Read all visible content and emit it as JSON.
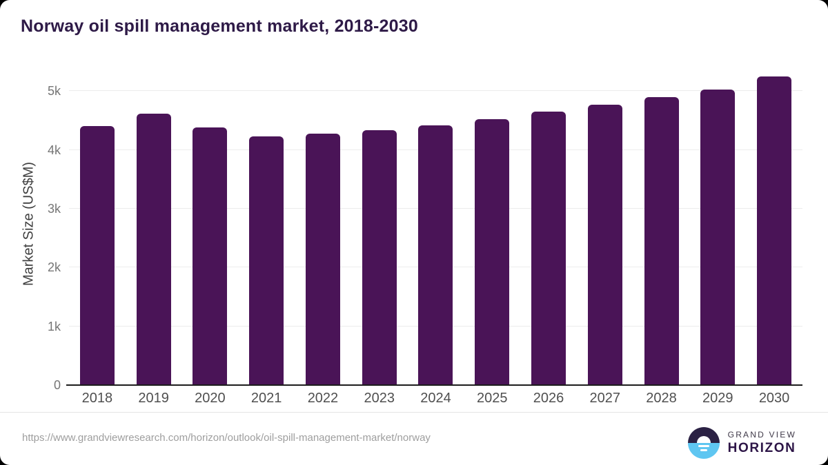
{
  "header": {
    "title": "Norway oil spill management market, 2018-2030",
    "title_color": "#2e1a47"
  },
  "chart_data": {
    "type": "bar",
    "title": "Norway oil spill management market, 2018-2030",
    "xlabel": "",
    "ylabel": "Market Size (US$M)",
    "categories": [
      "2018",
      "2019",
      "2020",
      "2021",
      "2022",
      "2023",
      "2024",
      "2025",
      "2026",
      "2027",
      "2028",
      "2029",
      "2030"
    ],
    "values": [
      4410,
      4620,
      4380,
      4230,
      4280,
      4340,
      4420,
      4520,
      4650,
      4770,
      4900,
      5030,
      5250
    ],
    "unit": "US$M",
    "ylim": [
      0,
      5380
    ],
    "yticks": [
      {
        "v": 0,
        "label": "0"
      },
      {
        "v": 1000,
        "label": "1k"
      },
      {
        "v": 2000,
        "label": "2k"
      },
      {
        "v": 3000,
        "label": "3k"
      },
      {
        "v": 4000,
        "label": "4k"
      },
      {
        "v": 5000,
        "label": "5k"
      }
    ],
    "grid": true,
    "legend": "none",
    "bar_color": "#4a1457"
  },
  "footer": {
    "source_url": "https://www.grandviewresearch.com/horizon/outlook/oil-spill-management-market/norway",
    "logo": {
      "top": "GRAND VIEW",
      "bottom": "HORIZON",
      "icon_dark": "#2b2144",
      "icon_blue": "#5fc6f1"
    }
  }
}
